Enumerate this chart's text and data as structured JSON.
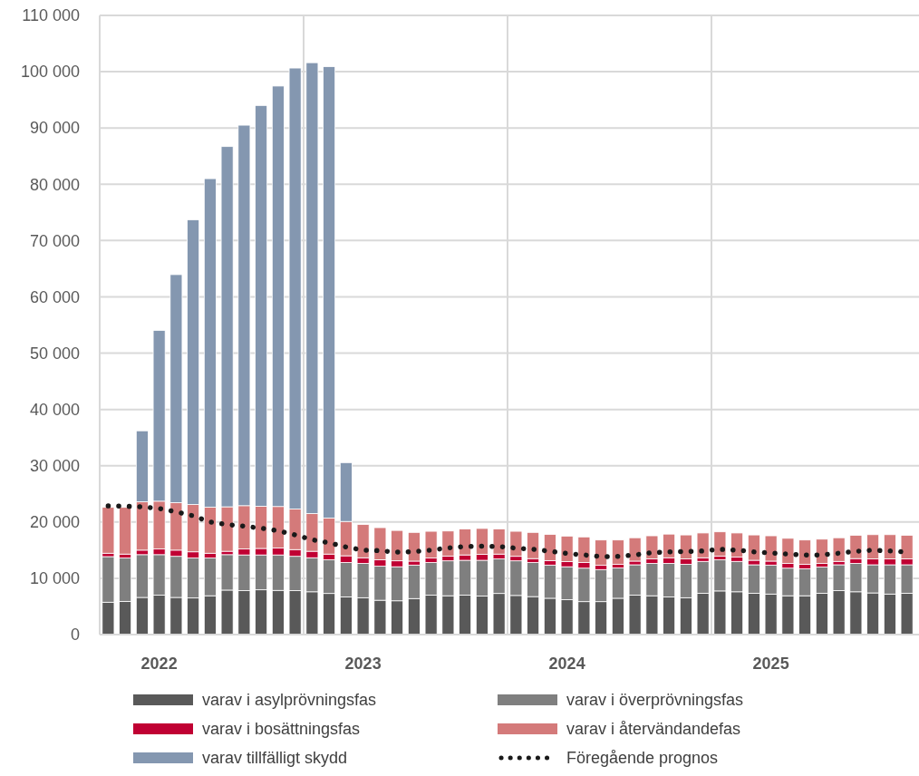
{
  "chart_data": {
    "type": "bar",
    "stacked": true,
    "categories": [
      null,
      null,
      null,
      "2022",
      null,
      null,
      null,
      null,
      null,
      null,
      null,
      null,
      null,
      null,
      null,
      "2023",
      null,
      null,
      null,
      null,
      null,
      null,
      null,
      null,
      null,
      null,
      null,
      "2024",
      null,
      null,
      null,
      null,
      null,
      null,
      null,
      null,
      null,
      null,
      null,
      "2025",
      null,
      null,
      null,
      null,
      null,
      null,
      null,
      null
    ],
    "series": [
      {
        "name": "varav i asylprövningsfas",
        "color": "#595959",
        "values": [
          5750,
          5900,
          6600,
          7000,
          6600,
          6500,
          6900,
          7900,
          7800,
          7950,
          7850,
          7800,
          7600,
          7300,
          6700,
          6550,
          6100,
          6000,
          6400,
          7000,
          6900,
          7000,
          6850,
          7300,
          6950,
          6750,
          6450,
          6200,
          5850,
          5850,
          6450,
          7000,
          6900,
          6700,
          6550,
          7350,
          7750,
          7600,
          7350,
          7200,
          6900,
          6900,
          7350,
          7800,
          7600,
          7400,
          7200,
          7350
        ]
      },
      {
        "name": "varav i överprövningsfas",
        "color": "#7f7f7f",
        "values": [
          8100,
          7700,
          7600,
          7200,
          7300,
          7100,
          6700,
          6300,
          6350,
          6200,
          6300,
          6100,
          6050,
          6000,
          6100,
          6100,
          6050,
          6050,
          5950,
          5800,
          6200,
          6200,
          6350,
          6150,
          6150,
          6050,
          5900,
          5850,
          5950,
          5700,
          5400,
          5400,
          5750,
          5950,
          5950,
          5650,
          5550,
          5400,
          5050,
          5150,
          4900,
          4800,
          4650,
          4600,
          5050,
          5000,
          5200,
          5050
        ]
      },
      {
        "name": "varav i bosättningsfas",
        "color": "#c00033",
        "values": [
          600,
          700,
          800,
          1000,
          1100,
          1100,
          850,
          600,
          1050,
          1150,
          1250,
          1200,
          1150,
          1000,
          1200,
          1000,
          1150,
          1050,
          700,
          800,
          850,
          950,
          1050,
          850,
          800,
          700,
          800,
          900,
          1000,
          750,
          650,
          650,
          800,
          1000,
          950,
          650,
          650,
          750,
          800,
          700,
          850,
          800,
          650,
          600,
          850,
          1050,
          1050,
          1050
        ]
      },
      {
        "name": "varav i återvändandefas",
        "color": "#d47a7a",
        "values": [
          8150,
          8300,
          8600,
          8500,
          8450,
          8400,
          8200,
          7900,
          7700,
          7500,
          7350,
          7200,
          6700,
          6400,
          6100,
          5900,
          5700,
          5400,
          5100,
          4750,
          4450,
          4600,
          4600,
          4450,
          4450,
          4650,
          4650,
          4550,
          4550,
          4500,
          4300,
          4150,
          4100,
          4200,
          4250,
          4400,
          4300,
          4300,
          4500,
          4500,
          4450,
          4300,
          4300,
          4200,
          4150,
          4300,
          4300,
          4200
        ]
      },
      {
        "name": "varav tillfälligt skydd",
        "color": "#8497b0",
        "values": [
          null,
          null,
          12600,
          30350,
          40500,
          50600,
          58350,
          64000,
          67600,
          71200,
          74700,
          78350,
          80100,
          80200,
          10450,
          null,
          null,
          null,
          null,
          null,
          null,
          null,
          null,
          null,
          null,
          null,
          null,
          null,
          null,
          null,
          null,
          null,
          null,
          null,
          null,
          null,
          null,
          null,
          null,
          null,
          null,
          null,
          null,
          null,
          null,
          null,
          null,
          null
        ]
      },
      {
        "name": "Föregående prognos",
        "type": "line",
        "color": "#1a1a1a",
        "line_style": "dotted",
        "values": [
          22850,
          22800,
          22700,
          22400,
          21800,
          21100,
          20000,
          19550,
          19250,
          18900,
          18450,
          17700,
          16850,
          16300,
          15550,
          15000,
          14900,
          14650,
          14750,
          15000,
          15400,
          15650,
          15700,
          15650,
          15350,
          15150,
          14800,
          14400,
          14150,
          13850,
          13900,
          14150,
          14550,
          14700,
          14750,
          14850,
          15150,
          15000,
          14700,
          14500,
          14300,
          14150,
          14150,
          14450,
          14800,
          15000,
          14850,
          14650
        ]
      }
    ],
    "ylim": [
      0,
      110000
    ],
    "yticks": [
      0,
      {
        "value": 10000,
        "label": "10 000"
      },
      {
        "value": 20000,
        "label": "20 000"
      },
      {
        "value": 30000,
        "label": "30 000"
      },
      {
        "value": 40000,
        "label": "40 000"
      },
      {
        "value": 50000,
        "label": "50 000"
      },
      {
        "value": 60000,
        "label": "60 000"
      },
      {
        "value": 70000,
        "label": "70 000"
      },
      {
        "value": 80000,
        "label": "80 000"
      },
      {
        "value": 90000,
        "label": "90 000"
      },
      {
        "value": 100000,
        "label": "100 000"
      },
      {
        "value": 110000,
        "label": "110 000"
      }
    ],
    "grid": true,
    "legend": "bottom"
  }
}
